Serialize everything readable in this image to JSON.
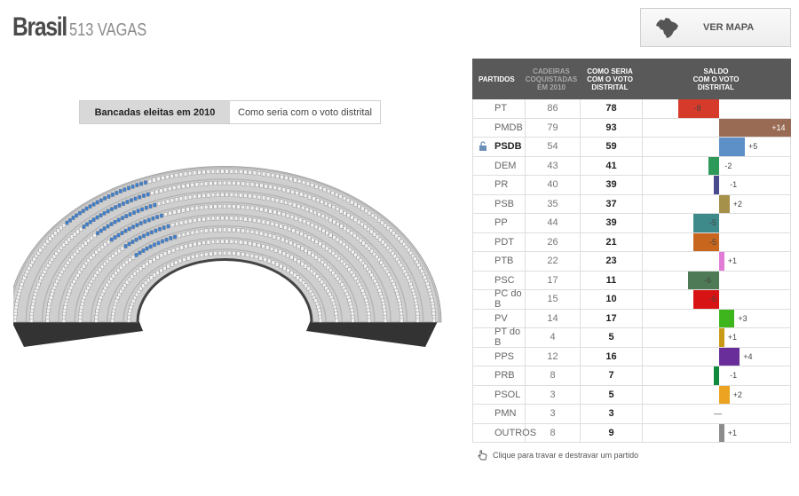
{
  "header": {
    "title": "Brasil",
    "subtitle": "513 VAGAS"
  },
  "map_button": {
    "label": "VER MAPA",
    "icon": "brazil-map-icon"
  },
  "toggle": {
    "active": "Bancadas eleitas em 2010",
    "inactive": "Como seria com o voto distrital"
  },
  "table": {
    "headers": {
      "party": "PARTIDOS",
      "seats_2010": [
        "CADEIRAS",
        "COQUISTADAS",
        "EM 2010"
      ],
      "district": [
        "COMO SERIA",
        "COM O VOTO",
        "DISTRITAL"
      ],
      "balance": [
        "SALDO",
        "COM O VOTO",
        "DISTRITAL"
      ]
    },
    "rows": [
      {
        "party": "PT",
        "seats_2010": "86",
        "district": "78",
        "balance": "-8",
        "delta": -8,
        "color": "#d63a2a"
      },
      {
        "party": "PMDB",
        "seats_2010": "79",
        "district": "93",
        "balance": "+14",
        "delta": 14,
        "color": "#9a6b54"
      },
      {
        "party": "PSDB",
        "seats_2010": "54",
        "district": "59",
        "balance": "+5",
        "delta": 5,
        "color": "#5e90c8",
        "locked": true
      },
      {
        "party": "DEM",
        "seats_2010": "43",
        "district": "41",
        "balance": "-2",
        "delta": -2,
        "color": "#2e9a5a"
      },
      {
        "party": "PR",
        "seats_2010": "40",
        "district": "39",
        "balance": "-1",
        "delta": -1,
        "color": "#4a4a8e"
      },
      {
        "party": "PSB",
        "seats_2010": "35",
        "district": "37",
        "balance": "+2",
        "delta": 2,
        "color": "#a6914a"
      },
      {
        "party": "PP",
        "seats_2010": "44",
        "district": "39",
        "balance": "-5",
        "delta": -5,
        "color": "#3e8a8a"
      },
      {
        "party": "PDT",
        "seats_2010": "26",
        "district": "21",
        "balance": "-5",
        "delta": -5,
        "color": "#c8661e"
      },
      {
        "party": "PTB",
        "seats_2010": "22",
        "district": "23",
        "balance": "+1",
        "delta": 1,
        "color": "#e07bd6"
      },
      {
        "party": "PSC",
        "seats_2010": "17",
        "district": "11",
        "balance": "-6",
        "delta": -6,
        "color": "#4e7a56"
      },
      {
        "party": "PC do B",
        "seats_2010": "15",
        "district": "10",
        "balance": "-5",
        "delta": -5,
        "color": "#d71313"
      },
      {
        "party": "PV",
        "seats_2010": "14",
        "district": "17",
        "balance": "+3",
        "delta": 3,
        "color": "#3fb51d"
      },
      {
        "party": "PT do B",
        "seats_2010": "4",
        "district": "5",
        "balance": "+1",
        "delta": 1,
        "color": "#c89a16"
      },
      {
        "party": "PPS",
        "seats_2010": "12",
        "district": "16",
        "balance": "+4",
        "delta": 4,
        "color": "#6a2e9a"
      },
      {
        "party": "PRB",
        "seats_2010": "8",
        "district": "7",
        "balance": "-1",
        "delta": -1,
        "color": "#118a3e"
      },
      {
        "party": "PSOL",
        "seats_2010": "3",
        "district": "5",
        "balance": "+2",
        "delta": 2,
        "color": "#eba321"
      },
      {
        "party": "PMN",
        "seats_2010": "3",
        "district": "3",
        "balance": "—",
        "delta": 0,
        "color": "#888888"
      },
      {
        "party": "OUTROS",
        "seats_2010": "8",
        "district": "9",
        "balance": "+1",
        "delta": 1,
        "color": "#8c8c8c"
      }
    ]
  },
  "hint": {
    "text": "Clique para travar e destravar um partido",
    "icon": "hand-pointer-icon"
  },
  "chamber": {
    "rows": 8,
    "seat_color": "#f2f2f2",
    "highlight_color": "#3f7ecb",
    "base_color": "#333333",
    "wall_color": "#cfcfcf",
    "highlighted_party": "PSDB"
  }
}
